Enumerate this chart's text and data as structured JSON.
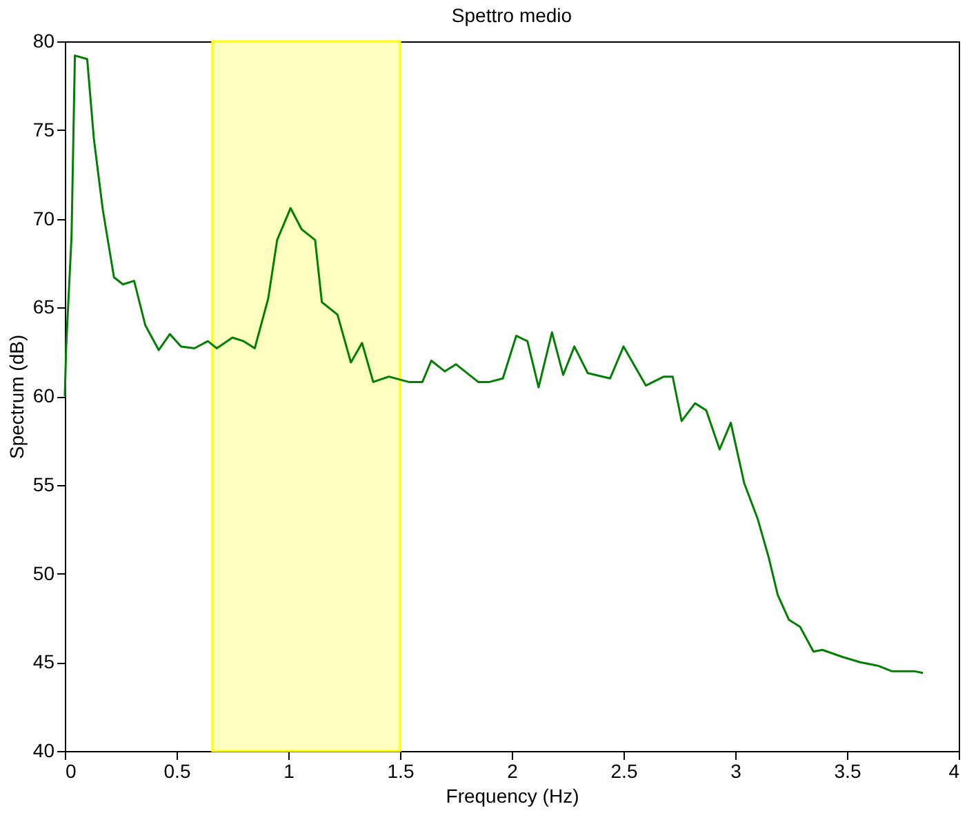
{
  "chart_data": {
    "type": "line",
    "title": "Spettro medio",
    "xlabel": "Frequency (Hz)",
    "ylabel": "Spectrum (dB)",
    "xlim": [
      0,
      4
    ],
    "xticks": [
      0,
      0.5,
      1,
      1.5,
      2,
      2.5,
      3,
      3.5,
      4
    ],
    "ylim": [
      40,
      80
    ],
    "yticks": [
      40,
      45,
      50,
      55,
      60,
      65,
      70,
      75,
      80
    ],
    "grid": false,
    "marker": "none",
    "line_style": "solid",
    "bands": [
      {
        "axis": "x",
        "from": 0.66,
        "to": 1.5,
        "color": "#ffffc0"
      }
    ],
    "series": [
      {
        "color": "#008000",
        "x": [
          0,
          0.006,
          0.03,
          0.045,
          0.1,
          0.13,
          0.17,
          0.22,
          0.26,
          0.31,
          0.36,
          0.42,
          0.47,
          0.52,
          0.58,
          0.64,
          0.68,
          0.75,
          0.8,
          0.85,
          0.91,
          0.95,
          1.01,
          1.06,
          1.12,
          1.15,
          1.22,
          1.28,
          1.33,
          1.38,
          1.45,
          1.51,
          1.54,
          1.6,
          1.64,
          1.7,
          1.75,
          1.85,
          1.9,
          1.96,
          2.02,
          2.07,
          2.12,
          2.18,
          2.23,
          2.28,
          2.34,
          2.44,
          2.5,
          2.6,
          2.68,
          2.72,
          2.76,
          2.82,
          2.87,
          2.93,
          2.98,
          3.04,
          3.1,
          3.15,
          3.19,
          3.24,
          3.29,
          3.35,
          3.39,
          3.48,
          3.56,
          3.64,
          3.7,
          3.8,
          3.84
        ],
        "values": [
          60,
          62.8,
          69,
          79.2,
          79,
          74.5,
          70.5,
          66.7,
          66.3,
          66.5,
          64,
          62.6,
          63.5,
          62.8,
          62.7,
          63.1,
          62.7,
          63.3,
          63.1,
          62.7,
          65.5,
          68.8,
          70.6,
          69.4,
          68.8,
          65.3,
          64.6,
          61.9,
          63,
          60.8,
          61.1,
          60.9,
          60.8,
          60.8,
          62,
          61.4,
          61.8,
          60.8,
          60.8,
          61,
          63.4,
          63.1,
          60.5,
          63.6,
          61.2,
          62.8,
          61.3,
          61,
          62.8,
          60.6,
          61.1,
          61.1,
          58.6,
          59.6,
          59.2,
          57,
          58.5,
          55.1,
          53.1,
          50.9,
          48.8,
          47.4,
          47,
          45.6,
          45.7,
          45.3,
          45,
          44.8,
          44.5,
          44.5,
          44.4
        ]
      }
    ]
  }
}
